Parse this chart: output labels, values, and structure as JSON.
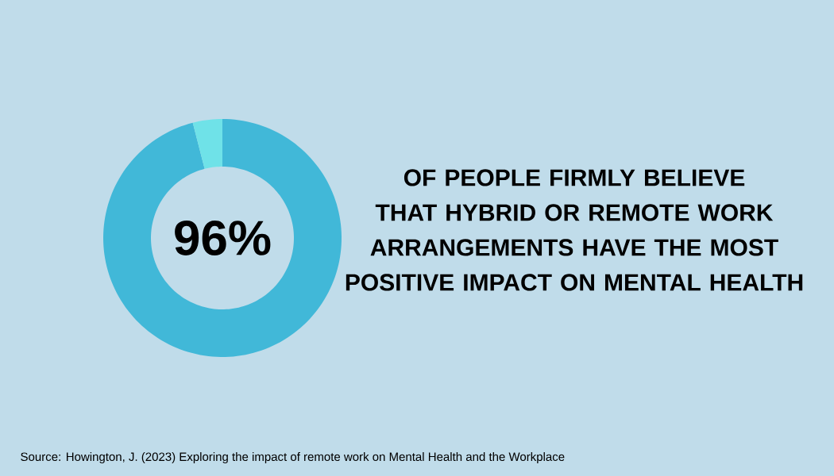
{
  "chart_data": {
    "type": "donut",
    "title": "OF PEOPLE FIRMLY BELIEVE THAT HYBRID OR REMOTE WORK ARRANGEMENTS HAVE THE MOST POSITIVE IMPACT ON MENTAL HEALTH",
    "categories": [
      null,
      null
    ],
    "values": [
      96,
      4
    ],
    "colors": [
      "#41b8d8",
      "#6fe2e8"
    ],
    "value_labels": [
      "96%",
      null
    ],
    "annotations": [
      "Source: Howington, J. (2023) Exploring the impact of remote work on Mental Health and the Workplace"
    ]
  }
}
